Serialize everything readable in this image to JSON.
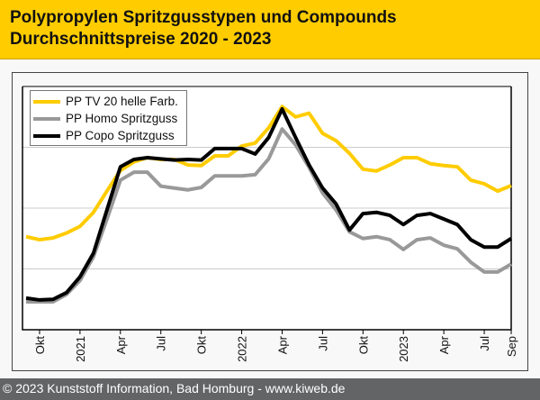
{
  "header": {
    "title_line1": "Polypropylen Spritzgusstypen und Compounds",
    "title_line2": "Durchschnittspreise 2020 - 2023"
  },
  "footer": {
    "text": "© 2023 Kunststoff Information, Bad Homburg - www.kiweb.de"
  },
  "chart_data": {
    "type": "line",
    "title": "Polypropylen Spritzgusstypen und Compounds – Durchschnittspreise 2020 - 2023",
    "xlabel": "",
    "ylabel": "",
    "note": "y-axis unlabeled; values are relative (gridline units)",
    "ylim": [
      0,
      4
    ],
    "grid": "horizontal",
    "legend_position": "top-left",
    "x": [
      "Sep 2020",
      "Okt 2020",
      "Nov 2020",
      "Dez 2020",
      "Jan 2021",
      "Feb 2021",
      "Mär 2021",
      "Apr 2021",
      "Mai 2021",
      "Jun 2021",
      "Jul 2021",
      "Aug 2021",
      "Sep 2021",
      "Okt 2021",
      "Nov 2021",
      "Dez 2021",
      "Jan 2022",
      "Feb 2022",
      "Mär 2022",
      "Apr 2022",
      "Mai 2022",
      "Jun 2022",
      "Jul 2022",
      "Aug 2022",
      "Sep 2022",
      "Okt 2022",
      "Nov 2022",
      "Dez 2022",
      "Jan 2023",
      "Feb 2023",
      "Mär 2023",
      "Apr 2023",
      "Mai 2023",
      "Jun 2023",
      "Jul 2023",
      "Aug 2023",
      "Sep 2023"
    ],
    "tick_labels": [
      {
        "i": 1,
        "label": "Okt"
      },
      {
        "i": 4,
        "label": "2021"
      },
      {
        "i": 7,
        "label": "Apr"
      },
      {
        "i": 10,
        "label": "Jul"
      },
      {
        "i": 13,
        "label": "Okt"
      },
      {
        "i": 16,
        "label": "2022"
      },
      {
        "i": 19,
        "label": "Apr"
      },
      {
        "i": 22,
        "label": "Jul"
      },
      {
        "i": 25,
        "label": "Okt"
      },
      {
        "i": 28,
        "label": "2023"
      },
      {
        "i": 31,
        "label": "Apr"
      },
      {
        "i": 34,
        "label": "Jul"
      },
      {
        "i": 36,
        "label": "Sep"
      }
    ],
    "series": [
      {
        "name": "PP TV 20 helle Farb.",
        "color": "#ffcc00",
        "values": [
          1.53,
          1.48,
          1.51,
          1.59,
          1.7,
          1.93,
          2.28,
          2.62,
          2.76,
          2.83,
          2.8,
          2.8,
          2.71,
          2.7,
          2.86,
          2.86,
          3.02,
          3.07,
          3.32,
          3.67,
          3.5,
          3.56,
          3.23,
          3.11,
          2.9,
          2.64,
          2.61,
          2.71,
          2.83,
          2.83,
          2.73,
          2.7,
          2.68,
          2.46,
          2.4,
          2.28,
          2.37
        ]
      },
      {
        "name": "PP Homo Spritzguss",
        "color": "#999999",
        "values": [
          0.46,
          0.46,
          0.46,
          0.58,
          0.81,
          1.2,
          1.82,
          2.46,
          2.59,
          2.59,
          2.36,
          2.33,
          2.3,
          2.34,
          2.53,
          2.53,
          2.53,
          2.55,
          2.81,
          3.3,
          3.04,
          2.67,
          2.25,
          1.97,
          1.61,
          1.5,
          1.53,
          1.48,
          1.32,
          1.48,
          1.51,
          1.39,
          1.33,
          1.11,
          0.95,
          0.95,
          1.08
        ]
      },
      {
        "name": "PP Copo Spritzguss",
        "color": "#000000",
        "values": [
          0.52,
          0.49,
          0.5,
          0.61,
          0.87,
          1.26,
          1.97,
          2.68,
          2.8,
          2.83,
          2.81,
          2.79,
          2.8,
          2.79,
          2.98,
          2.98,
          2.98,
          2.89,
          3.16,
          3.63,
          3.16,
          2.71,
          2.33,
          2.07,
          1.64,
          1.91,
          1.93,
          1.88,
          1.73,
          1.88,
          1.91,
          1.82,
          1.73,
          1.48,
          1.36,
          1.36,
          1.5
        ]
      }
    ]
  }
}
